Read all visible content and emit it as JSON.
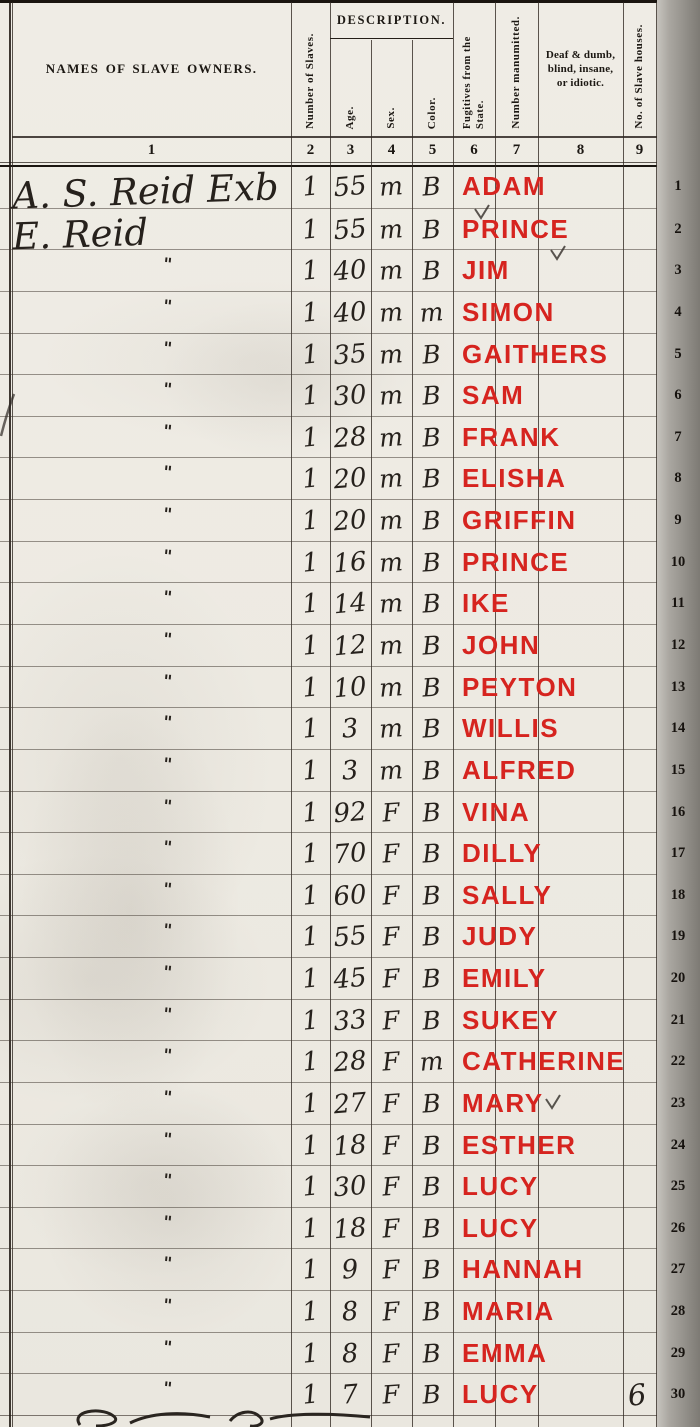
{
  "document_type": "Slave Schedule census page",
  "colors": {
    "annotation_red": "#d6241f",
    "paper": "#edeae2",
    "page_edge_grey": "#95928c"
  },
  "header": {
    "names_label": "NAMES OF SLAVE OWNERS.",
    "description_label": "DESCRIPTION.",
    "columns": {
      "number_of_slaves": "Number of Slaves.",
      "age": "Age.",
      "sex": "Sex.",
      "color": "Color.",
      "fugitives": "Fugitives from the State.",
      "manumitted": "Number manumitted.",
      "deaf_lines": [
        "Deaf & dumb,",
        "blind, insane,",
        "or idiotic."
      ],
      "houses": "No. of Slave houses."
    },
    "col_numbers": [
      "1",
      "2",
      "3",
      "4",
      "5",
      "6",
      "7",
      "8",
      "9"
    ]
  },
  "rows": [
    {
      "n": "1",
      "owner": "A. S. Reid Exb",
      "slaves": "1",
      "age": "55",
      "sex": "m",
      "color": "B",
      "name": "ADAM",
      "houses": ""
    },
    {
      "n": "2",
      "owner": "E. Reid",
      "slaves": "1",
      "age": "55",
      "sex": "m",
      "color": "B",
      "name": "PRINCE",
      "houses": ""
    },
    {
      "n": "3",
      "owner": "\"",
      "slaves": "1",
      "age": "40",
      "sex": "m",
      "color": "B",
      "name": "JIM",
      "houses": ""
    },
    {
      "n": "4",
      "owner": "\"",
      "slaves": "1",
      "age": "40",
      "sex": "m",
      "color": "m",
      "name": "SIMON",
      "houses": ""
    },
    {
      "n": "5",
      "owner": "\"",
      "slaves": "1",
      "age": "35",
      "sex": "m",
      "color": "B",
      "name": "GAITHERS",
      "houses": ""
    },
    {
      "n": "6",
      "owner": "\"",
      "slaves": "1",
      "age": "30",
      "sex": "m",
      "color": "B",
      "name": "SAM",
      "houses": ""
    },
    {
      "n": "7",
      "owner": "\"",
      "slaves": "1",
      "age": "28",
      "sex": "m",
      "color": "B",
      "name": "FRANK",
      "houses": ""
    },
    {
      "n": "8",
      "owner": "\"",
      "slaves": "1",
      "age": "20",
      "sex": "m",
      "color": "B",
      "name": "ELISHA",
      "houses": ""
    },
    {
      "n": "9",
      "owner": "\"",
      "slaves": "1",
      "age": "20",
      "sex": "m",
      "color": "B",
      "name": "GRIFFIN",
      "houses": ""
    },
    {
      "n": "10",
      "owner": "\"",
      "slaves": "1",
      "age": "16",
      "sex": "m",
      "color": "B",
      "name": "PRINCE",
      "houses": ""
    },
    {
      "n": "11",
      "owner": "\"",
      "slaves": "1",
      "age": "14",
      "sex": "m",
      "color": "B",
      "name": "IKE",
      "houses": ""
    },
    {
      "n": "12",
      "owner": "\"",
      "slaves": "1",
      "age": "12",
      "sex": "m",
      "color": "B",
      "name": "JOHN",
      "houses": ""
    },
    {
      "n": "13",
      "owner": "\"",
      "slaves": "1",
      "age": "10",
      "sex": "m",
      "color": "B",
      "name": "PEYTON",
      "houses": ""
    },
    {
      "n": "14",
      "owner": "\"",
      "slaves": "1",
      "age": "3",
      "sex": "m",
      "color": "B",
      "name": "WILLIS",
      "houses": ""
    },
    {
      "n": "15",
      "owner": "\"",
      "slaves": "1",
      "age": "3",
      "sex": "m",
      "color": "B",
      "name": "ALFRED",
      "houses": ""
    },
    {
      "n": "16",
      "owner": "\"",
      "slaves": "1",
      "age": "92",
      "sex": "F",
      "color": "B",
      "name": "VINA",
      "houses": ""
    },
    {
      "n": "17",
      "owner": "\"",
      "slaves": "1",
      "age": "70",
      "sex": "F",
      "color": "B",
      "name": "DILLY",
      "houses": ""
    },
    {
      "n": "18",
      "owner": "\"",
      "slaves": "1",
      "age": "60",
      "sex": "F",
      "color": "B",
      "name": "SALLY",
      "houses": ""
    },
    {
      "n": "19",
      "owner": "\"",
      "slaves": "1",
      "age": "55",
      "sex": "F",
      "color": "B",
      "name": "JUDY",
      "houses": ""
    },
    {
      "n": "20",
      "owner": "\"",
      "slaves": "1",
      "age": "45",
      "sex": "F",
      "color": "B",
      "name": "EMILY",
      "houses": ""
    },
    {
      "n": "21",
      "owner": "\"",
      "slaves": "1",
      "age": "33",
      "sex": "F",
      "color": "B",
      "name": "SUKEY",
      "houses": ""
    },
    {
      "n": "22",
      "owner": "\"",
      "slaves": "1",
      "age": "28",
      "sex": "F",
      "color": "m",
      "name": "CATHERINE",
      "houses": ""
    },
    {
      "n": "23",
      "owner": "\"",
      "slaves": "1",
      "age": "27",
      "sex": "F",
      "color": "B",
      "name": "MARY",
      "houses": ""
    },
    {
      "n": "24",
      "owner": "\"",
      "slaves": "1",
      "age": "18",
      "sex": "F",
      "color": "B",
      "name": "ESTHER",
      "houses": ""
    },
    {
      "n": "25",
      "owner": "\"",
      "slaves": "1",
      "age": "30",
      "sex": "F",
      "color": "B",
      "name": "LUCY",
      "houses": ""
    },
    {
      "n": "26",
      "owner": "\"",
      "slaves": "1",
      "age": "18",
      "sex": "F",
      "color": "B",
      "name": "LUCY",
      "houses": ""
    },
    {
      "n": "27",
      "owner": "\"",
      "slaves": "1",
      "age": "9",
      "sex": "F",
      "color": "B",
      "name": "HANNAH",
      "houses": ""
    },
    {
      "n": "28",
      "owner": "\"",
      "slaves": "1",
      "age": "8",
      "sex": "F",
      "color": "B",
      "name": "MARIA",
      "houses": ""
    },
    {
      "n": "29",
      "owner": "\"",
      "slaves": "1",
      "age": "8",
      "sex": "F",
      "color": "B",
      "name": "EMMA",
      "houses": ""
    },
    {
      "n": "30",
      "owner": "\"",
      "slaves": "1",
      "age": "7",
      "sex": "F",
      "color": "B",
      "name": "LUCY",
      "houses": "6"
    }
  ]
}
